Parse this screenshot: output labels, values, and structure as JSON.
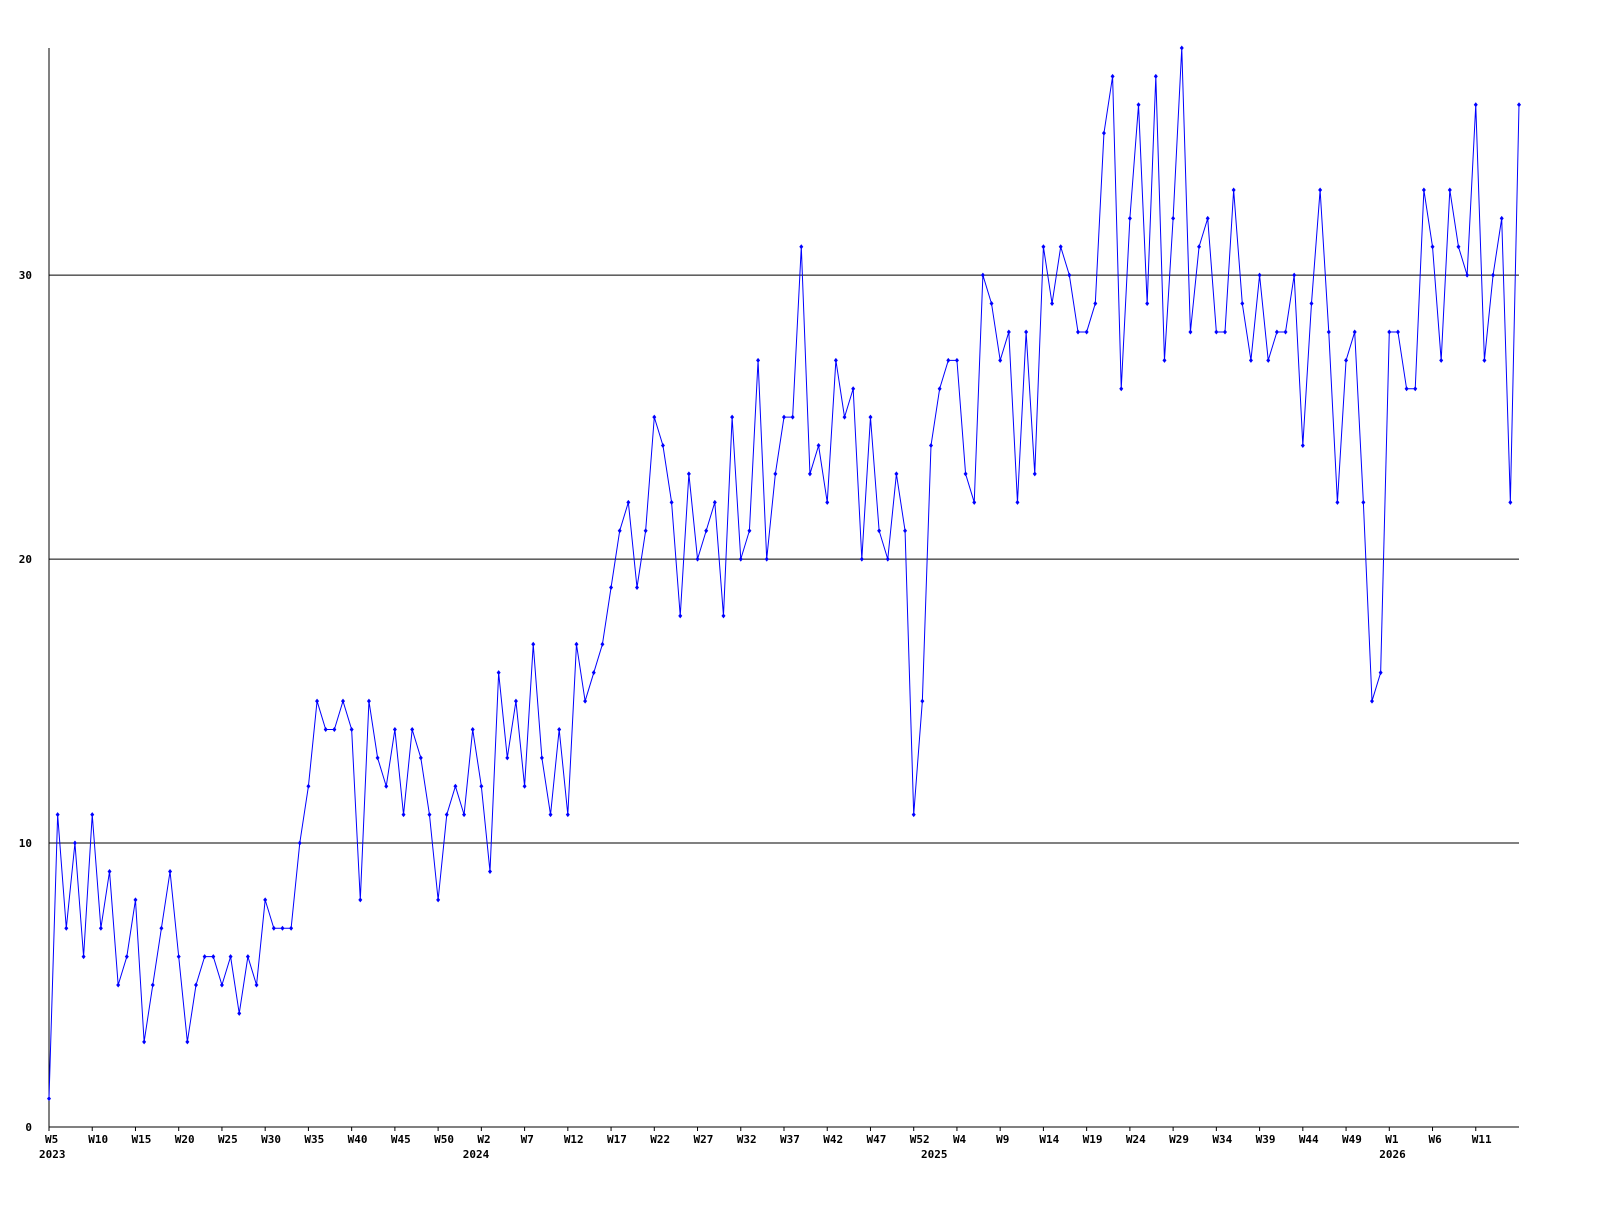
{
  "chart_data": {
    "type": "line",
    "categories": [
      "W5",
      null,
      null,
      null,
      null,
      "W10",
      null,
      null,
      null,
      null,
      "W15",
      null,
      null,
      null,
      null,
      "W20",
      null,
      null,
      null,
      null,
      "W25",
      null,
      null,
      null,
      null,
      "W30",
      null,
      null,
      null,
      null,
      "W35",
      null,
      null,
      null,
      null,
      "W40",
      null,
      null,
      null,
      null,
      "W45",
      null,
      null,
      null,
      null,
      "W50",
      null,
      null,
      null,
      null,
      "W2",
      null,
      null,
      null,
      null,
      "W7",
      null,
      null,
      null,
      null,
      "W12",
      null,
      null,
      null,
      null,
      "W17",
      null,
      null,
      null,
      null,
      "W22",
      null,
      null,
      null,
      null,
      "W27",
      null,
      null,
      null,
      null,
      "W32",
      null,
      null,
      null,
      null,
      "W37",
      null,
      null,
      null,
      null,
      "W42",
      null,
      null,
      null,
      null,
      "W47",
      null,
      null,
      null,
      null,
      "W52",
      null,
      null,
      null,
      null,
      "W4",
      null,
      null,
      null,
      null,
      "W9",
      null,
      null,
      null,
      null,
      "W14",
      null,
      null,
      null,
      null,
      "W19",
      null,
      null,
      null,
      null,
      "W24",
      null,
      null,
      null,
      null,
      "W29",
      null,
      null,
      null,
      null,
      "W34",
      null,
      null,
      null,
      null,
      "W39",
      null,
      null,
      null,
      null,
      "W44",
      null,
      null,
      null,
      null,
      "W49",
      null,
      null,
      null,
      null,
      "W1",
      null,
      null,
      null,
      null,
      "W6",
      null,
      null,
      null,
      null,
      "W11",
      null,
      null,
      null,
      null,
      null
    ],
    "year_labels": [
      "2023",
      null,
      null,
      null,
      null,
      null,
      null,
      null,
      null,
      null,
      null,
      null,
      null,
      null,
      null,
      null,
      null,
      null,
      null,
      null,
      null,
      null,
      null,
      null,
      null,
      null,
      null,
      null,
      null,
      null,
      null,
      null,
      null,
      null,
      null,
      null,
      null,
      null,
      null,
      null,
      null,
      null,
      null,
      null,
      null,
      null,
      null,
      null,
      null,
      "2024",
      null,
      null,
      null,
      null,
      null,
      null,
      null,
      null,
      null,
      null,
      null,
      null,
      null,
      null,
      null,
      null,
      null,
      null,
      null,
      null,
      null,
      null,
      null,
      null,
      null,
      null,
      null,
      null,
      null,
      null,
      null,
      null,
      null,
      null,
      null,
      null,
      null,
      null,
      null,
      null,
      null,
      null,
      null,
      null,
      null,
      null,
      null,
      null,
      null,
      null,
      null,
      null,
      "2025",
      null,
      null,
      null,
      null,
      null,
      null,
      null,
      null,
      null,
      null,
      null,
      null,
      null,
      null,
      null,
      null,
      null,
      null,
      null,
      null,
      null,
      null,
      null,
      null,
      null,
      null,
      null,
      null,
      null,
      null,
      null,
      null,
      null,
      null,
      null,
      null,
      null,
      null,
      null,
      null,
      null,
      null,
      null,
      null,
      null,
      null,
      null,
      null,
      null,
      null,
      null,
      null,
      "2026",
      null,
      null,
      null,
      null,
      null,
      null,
      null,
      null,
      null,
      null,
      null,
      null,
      null,
      null,
      null
    ],
    "series": [
      {
        "color": "#0000ff",
        "values": [
          1,
          11,
          7,
          10,
          6,
          11,
          7,
          9,
          5,
          6,
          8,
          3,
          5,
          7,
          9,
          6,
          3,
          5,
          6,
          6,
          5,
          6,
          4,
          6,
          5,
          8,
          7,
          7,
          7,
          10,
          12,
          15,
          14,
          14,
          15,
          14,
          8,
          15,
          13,
          12,
          14,
          11,
          14,
          13,
          11,
          8,
          11,
          12,
          11,
          14,
          12,
          9,
          16,
          13,
          15,
          12,
          17,
          13,
          11,
          14,
          11,
          17,
          15,
          16,
          17,
          19,
          21,
          22,
          19,
          21,
          25,
          24,
          22,
          18,
          23,
          20,
          21,
          22,
          18,
          25,
          20,
          21,
          27,
          20,
          23,
          25,
          25,
          31,
          23,
          24,
          22,
          27,
          25,
          26,
          20,
          25,
          21,
          20,
          23,
          21,
          11,
          15,
          24,
          26,
          27,
          27,
          23,
          22,
          30,
          29,
          27,
          28,
          22,
          28,
          23,
          31,
          29,
          31,
          30,
          28,
          28,
          29,
          35,
          37,
          26,
          32,
          36,
          29,
          37,
          27,
          32,
          38,
          28,
          31,
          32,
          28,
          28,
          33,
          29,
          27,
          30,
          27,
          28,
          28,
          30,
          24,
          29,
          33,
          28,
          22,
          27,
          28,
          22,
          15,
          16,
          28,
          28,
          26,
          26,
          33,
          31,
          27,
          33,
          31,
          30,
          36,
          27,
          30,
          32,
          22,
          36
        ]
      }
    ],
    "ylim": [
      0,
      38
    ],
    "yticks": [
      0,
      10,
      20,
      30
    ],
    "grid": true
  }
}
